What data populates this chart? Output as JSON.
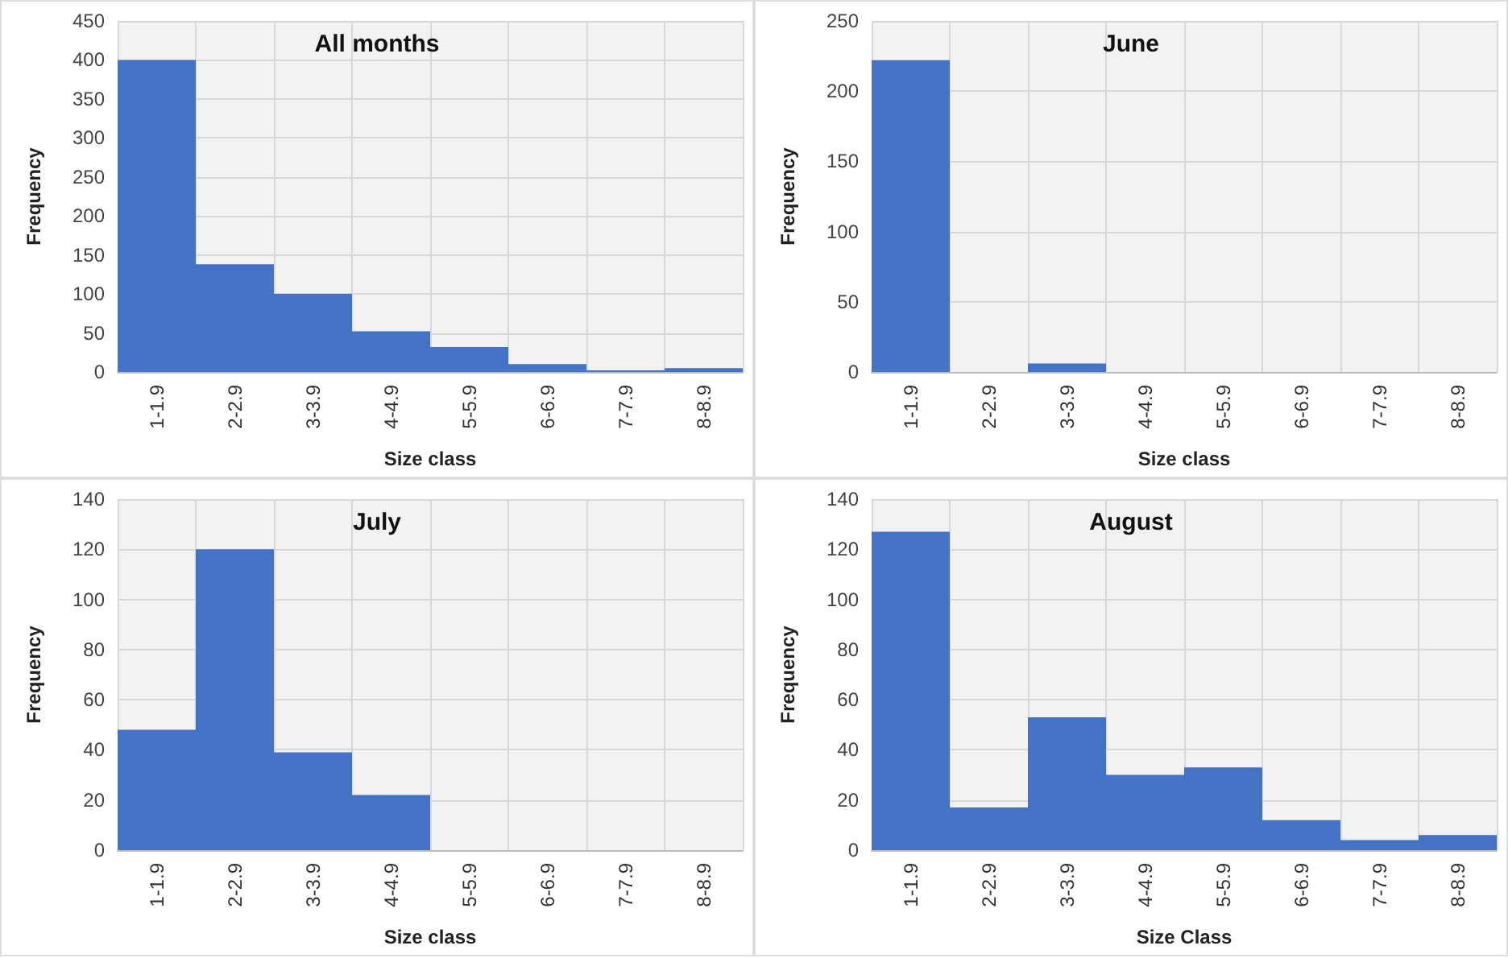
{
  "chart_data": [
    {
      "type": "bar",
      "title": "All months",
      "xlabel": "Size class",
      "ylabel": "Frequency",
      "categories": [
        "1-1.9",
        "2-2.9",
        "3-3.9",
        "4-4.9",
        "5-5.9",
        "6-6.9",
        "7-7.9",
        "8-8.9"
      ],
      "values": [
        400,
        138,
        100,
        52,
        32,
        10,
        2,
        5
      ],
      "color": "#4472c4",
      "ylim": [
        0,
        450
      ],
      "yticks": [
        0,
        50,
        100,
        150,
        200,
        250,
        300,
        350,
        400,
        450
      ],
      "grid": true
    },
    {
      "type": "bar",
      "title": "June",
      "xlabel": "Size class",
      "ylabel": "Frequency",
      "categories": [
        "1-1.9",
        "2-2.9",
        "3-3.9",
        "4-4.9",
        "5-5.9",
        "6-6.9",
        "7-7.9",
        "8-8.9"
      ],
      "values": [
        222,
        0,
        6,
        0,
        0,
        0,
        0,
        0
      ],
      "color": "#4472c4",
      "ylim": [
        0,
        250
      ],
      "yticks": [
        0,
        50,
        100,
        150,
        200,
        250
      ],
      "grid": true
    },
    {
      "type": "bar",
      "title": "July",
      "xlabel": "Size class",
      "ylabel": "Frequency",
      "categories": [
        "1-1.9",
        "2-2.9",
        "3-3.9",
        "4-4.9",
        "5-5.9",
        "6-6.9",
        "7-7.9",
        "8-8.9"
      ],
      "values": [
        48,
        120,
        39,
        22,
        0,
        0,
        0,
        0
      ],
      "color": "#4472c4",
      "ylim": [
        0,
        140
      ],
      "yticks": [
        0,
        20,
        40,
        60,
        80,
        100,
        120,
        140
      ],
      "grid": true
    },
    {
      "type": "bar",
      "title": "August",
      "xlabel": "Size Class",
      "ylabel": "Frequency",
      "categories": [
        "1-1.9",
        "2-2.9",
        "3-3.9",
        "4-4.9",
        "5-5.9",
        "6-6.9",
        "7-7.9",
        "8-8.9"
      ],
      "values": [
        127,
        17,
        53,
        30,
        33,
        12,
        4,
        6
      ],
      "color": "#4472c4",
      "ylim": [
        0,
        140
      ],
      "yticks": [
        0,
        20,
        40,
        60,
        80,
        100,
        120,
        140
      ],
      "grid": true
    }
  ]
}
